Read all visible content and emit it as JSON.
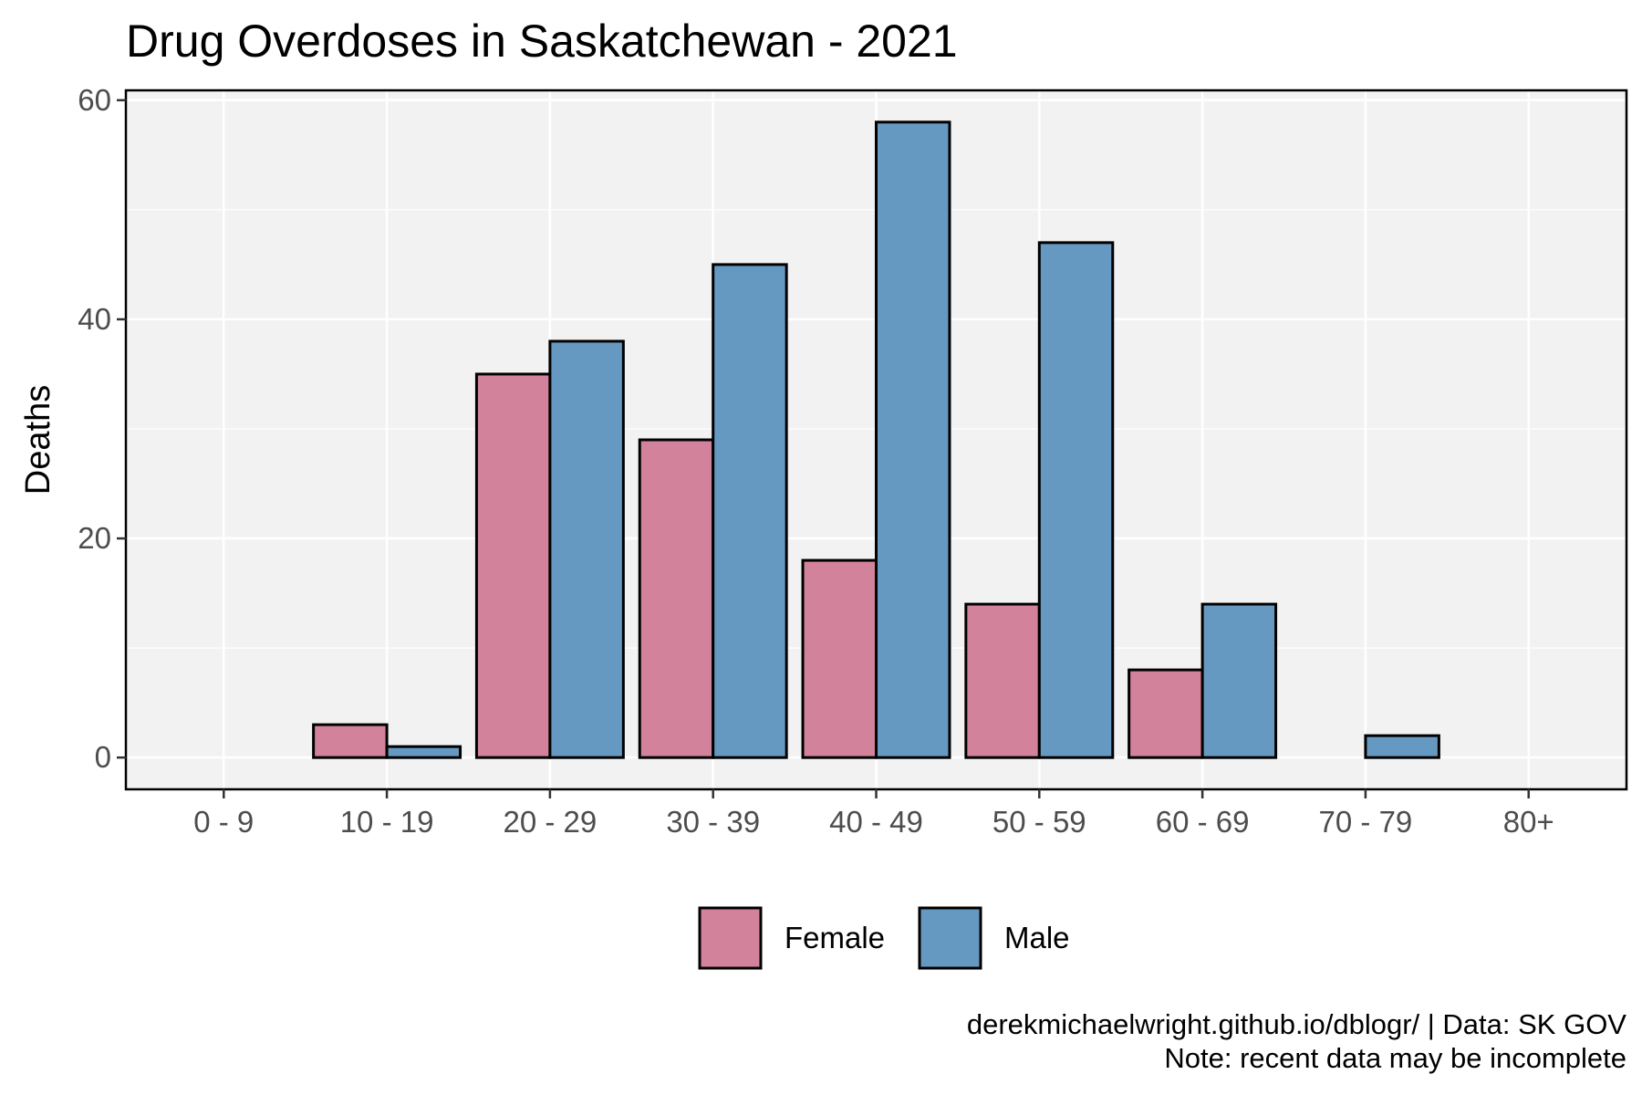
{
  "chart_data": {
    "type": "bar",
    "title": "Drug Overdoses in Saskatchewan - 2021",
    "xlabel": "",
    "ylabel": "Deaths",
    "categories": [
      "0 - 9",
      "10 - 19",
      "20 - 29",
      "30 - 39",
      "40 - 49",
      "50 - 59",
      "60 - 69",
      "70 - 79",
      "80+"
    ],
    "series": [
      {
        "name": "Female",
        "color": "#d3829b",
        "values": [
          0,
          3,
          35,
          29,
          18,
          14,
          8,
          0,
          0
        ]
      },
      {
        "name": "Male",
        "color": "#6699c2",
        "values": [
          0,
          1,
          38,
          45,
          58,
          47,
          14,
          2,
          0
        ]
      }
    ],
    "ylim": [
      -2.9,
      60.9
    ],
    "yticks": [
      0,
      20,
      40,
      60
    ],
    "grid": true,
    "panel_background": "#f2f2f2",
    "legend_position": "bottom",
    "caption_lines": [
      "derekmichaelwright.github.io/dblogr/ | Data: SK GOV",
      "Note: recent data may be incomplete"
    ]
  }
}
